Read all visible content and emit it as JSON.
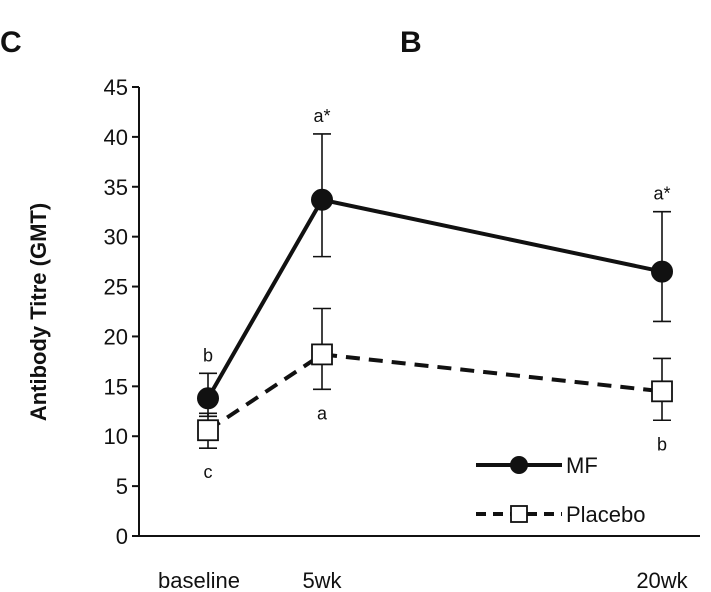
{
  "panel_letters": {
    "left": "C",
    "center": "B"
  },
  "chart_data": {
    "type": "line",
    "title": "",
    "xlabel": "",
    "ylabel": "Antibody Titre (GMT)",
    "categories": [
      "baseline",
      "5wk",
      "20wk"
    ],
    "ylim": [
      0,
      45
    ],
    "yticks": [
      0,
      5,
      10,
      15,
      20,
      25,
      30,
      35,
      40,
      45
    ],
    "grid": false,
    "legend_position": "bottom-right",
    "series": [
      {
        "name": "MF",
        "style": "solid",
        "marker": "filled-circle",
        "color": "#111111",
        "values": [
          13.8,
          33.7,
          26.5
        ],
        "error_low": [
          12.0,
          28.0,
          21.5
        ],
        "error_high": [
          16.3,
          40.3,
          32.5
        ],
        "labels": [
          "b",
          "a*",
          "a*"
        ]
      },
      {
        "name": "Placebo",
        "style": "dashed",
        "marker": "open-square",
        "color": "#111111",
        "values": [
          10.6,
          18.2,
          14.5
        ],
        "error_low": [
          8.8,
          14.7,
          11.6
        ],
        "error_high": [
          12.3,
          22.8,
          17.8
        ],
        "labels": [
          "c",
          "a",
          "b"
        ]
      }
    ]
  }
}
